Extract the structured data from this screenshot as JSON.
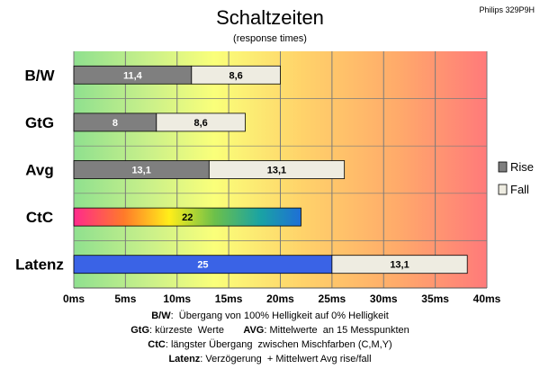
{
  "chart_data": {
    "type": "bar",
    "orientation": "horizontal",
    "stacked": true,
    "title": "Schaltzeiten",
    "subtitle": "(response times)",
    "corner_label": "Philips 329P9H",
    "categories": [
      "B/W",
      "GtG",
      "Avg",
      "CtC",
      "Latenz"
    ],
    "series": [
      {
        "name": "Rise",
        "color": "#7f7f7f",
        "values": [
          11.4,
          8,
          13.1,
          22,
          25
        ],
        "labels": [
          "11,4",
          "8",
          "13,1",
          "22",
          "25"
        ],
        "fills": [
          "#7f7f7f",
          "#7f7f7f",
          "#7f7f7f",
          "gradient-rainbow",
          "#3a63e6"
        ],
        "label_colors": [
          "#ffffff",
          "#ffffff",
          "#ffffff",
          "#000000",
          "#ffffff"
        ]
      },
      {
        "name": "Fall",
        "color": "#eeece1",
        "values": [
          8.6,
          8.6,
          13.1,
          null,
          13.1
        ],
        "labels": [
          "8,6",
          "8,6",
          "13,1",
          "",
          "13,1"
        ],
        "fills": [
          "#eeece1",
          "#eeece1",
          "#eeece1",
          "#eeece1",
          "#eeece1"
        ],
        "label_colors": [
          "#000000",
          "#000000",
          "#000000",
          "#000000",
          "#000000"
        ]
      }
    ],
    "xlim": [
      0,
      40
    ],
    "x_ticks": [
      0,
      5,
      10,
      15,
      20,
      25,
      30,
      35,
      40
    ],
    "x_tick_labels": [
      "0ms",
      "5ms",
      "10ms",
      "15ms",
      "20ms",
      "25ms",
      "30ms",
      "35ms",
      "40ms"
    ],
    "grid": true,
    "legend": {
      "position": "right",
      "entries": [
        "Rise",
        "Fall"
      ]
    },
    "background": "gradient green-yellow-red"
  },
  "notes": [
    [
      {
        "b": "B/W"
      },
      {
        "t": ":  Übergang von 100% Helligkeit auf 0% Helligkeit"
      }
    ],
    [
      {
        "b": "GtG"
      },
      {
        "t": ": kürzeste  Werte       "
      },
      {
        "b": "AVG"
      },
      {
        "t": ": Mittelwerte  an 15 Messpunkten"
      }
    ],
    [
      {
        "b": "CtC"
      },
      {
        "t": ": längster Übergang  zwischen Mischfarben (C,M,Y)"
      }
    ],
    [
      {
        "b": "Latenz"
      },
      {
        "t": ": Verzögerung  + Mittelwert Avg rise/fall"
      }
    ]
  ]
}
